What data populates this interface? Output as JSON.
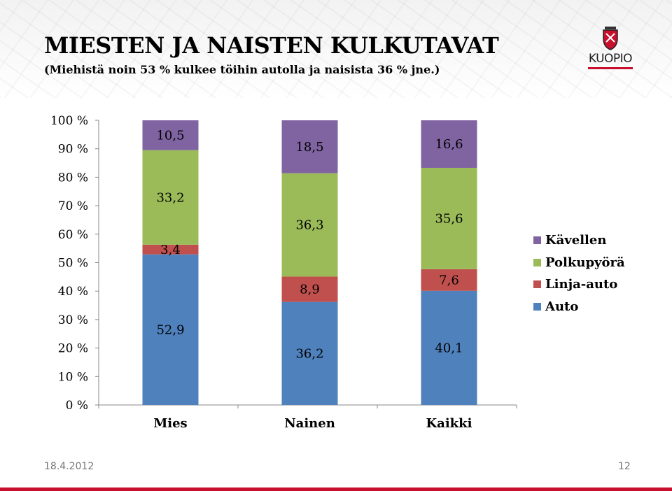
{
  "header": {
    "title": "MIESTEN JA NAISTEN KULKUTAVAT",
    "subtitle": "(Miehistä noin 53 % kulkee töihin autolla ja naisista 36 % jne.)",
    "logo_text": "KUOPIO"
  },
  "footer": {
    "date": "18.4.2012",
    "page": "12"
  },
  "chart_data": {
    "type": "bar",
    "stacked": true,
    "percent_stacked": true,
    "categories": [
      "Mies",
      "Nainen",
      "Kaikki"
    ],
    "series": [
      {
        "name": "Auto",
        "values": [
          52.9,
          36.2,
          40.1
        ],
        "labels": [
          "52,9",
          "36,2",
          "40,1"
        ],
        "color": "#4f81bd"
      },
      {
        "name": "Linja-auto",
        "values": [
          3.4,
          8.9,
          7.6
        ],
        "labels": [
          "3,4",
          "8,9",
          "7,6"
        ],
        "color": "#c0504d"
      },
      {
        "name": "Polkupyörä",
        "values": [
          33.2,
          36.3,
          35.6
        ],
        "labels": [
          "33,2",
          "36,3",
          "35,6"
        ],
        "color": "#9bbb59"
      },
      {
        "name": "Kävellen",
        "values": [
          10.5,
          18.5,
          16.6
        ],
        "labels": [
          "10,5",
          "18,5",
          "16,6"
        ],
        "color": "#8064a2"
      }
    ],
    "y_ticks": [
      "0 %",
      "10 %",
      "20 %",
      "30 %",
      "40 %",
      "50 %",
      "60 %",
      "70 %",
      "80 %",
      "90 %",
      "100 %"
    ],
    "ylim": [
      0,
      100
    ],
    "grid": false,
    "legend_position": "right"
  }
}
